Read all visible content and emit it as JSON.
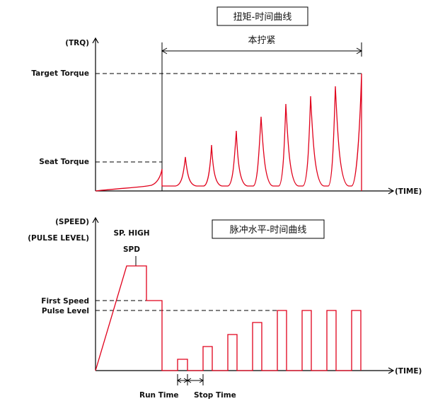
{
  "top_chart": {
    "title": "扭矩-时间曲线",
    "y_axis_label": "(TRQ)",
    "x_axis_label": "(TIME)",
    "span_label": "本拧紧",
    "level_labels": {
      "target_torque": "Target Torque",
      "seat_torque": "Seat Torque"
    }
  },
  "bottom_chart": {
    "title": "脉冲水平-时间曲线",
    "y_axis_label_line1": "(SPEED)",
    "y_axis_label_line2": "(PULSE LEVEL)",
    "x_axis_label": "(TIME)",
    "peak_label_line1": "SP. HIGH",
    "peak_label_line2": "SPD",
    "level_labels": {
      "first_speed": "First Speed",
      "pulse_level": "Pulse Level"
    },
    "timing_labels": {
      "run_time": "Run Time",
      "stop_time": "Stop Time"
    }
  },
  "colors": {
    "curve": "#e0001b",
    "axes": "#000000",
    "text": "#111111"
  }
}
